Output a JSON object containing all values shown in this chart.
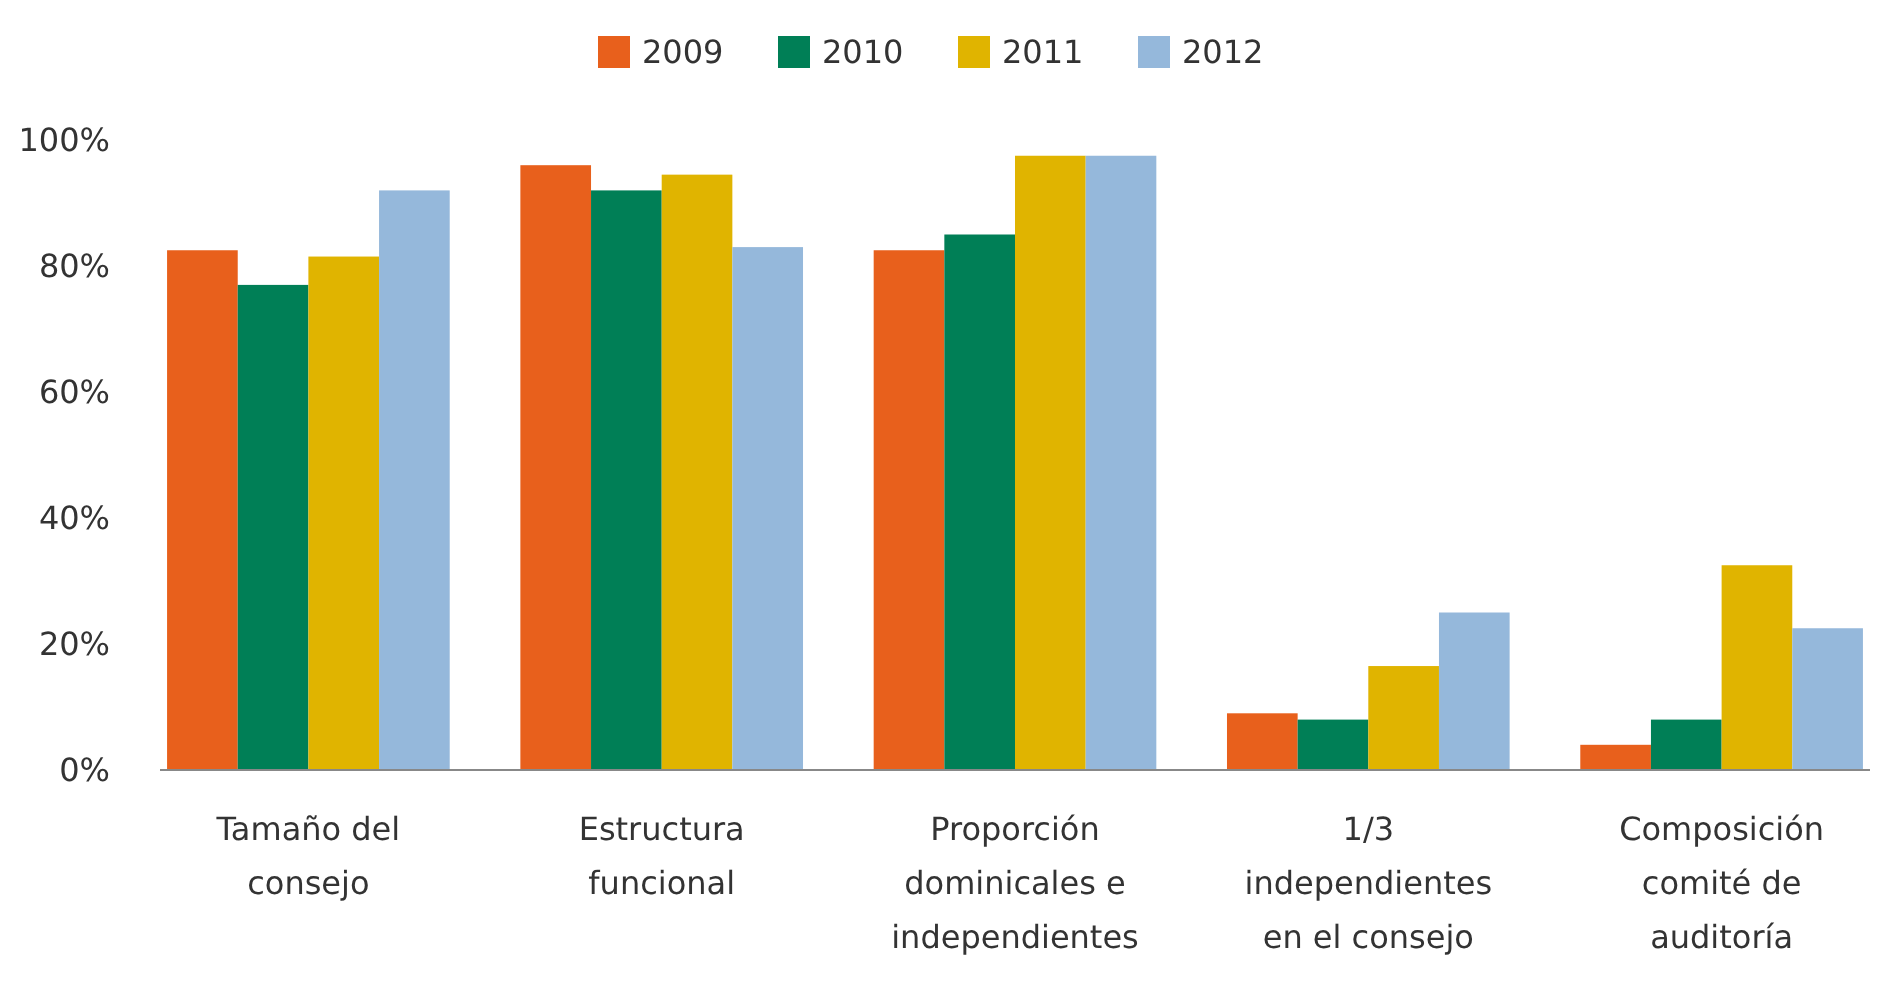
{
  "chart_data": {
    "type": "bar",
    "categories": [
      "Tamaño del consejo",
      "Estructura funcional",
      "Proporción dominicales e independientes",
      "1/3 independientes en el consejo",
      "Composición comité de auditoría"
    ],
    "series": [
      {
        "name": "2009",
        "color": "#e8601c",
        "values": [
          82.5,
          96,
          82.5,
          9,
          4
        ]
      },
      {
        "name": "2010",
        "color": "#007f56",
        "values": [
          77,
          92,
          85,
          8,
          8
        ]
      },
      {
        "name": "2011",
        "color": "#e0b400",
        "values": [
          81.5,
          94.5,
          97.5,
          16.5,
          32.5
        ]
      },
      {
        "name": "2012",
        "color": "#95b8db",
        "values": [
          92,
          83,
          97.5,
          25,
          22.5
        ]
      }
    ],
    "ylim": [
      0,
      100
    ],
    "yticks": [
      {
        "value": 0,
        "label": "0%"
      },
      {
        "value": 20,
        "label": "20%"
      },
      {
        "value": 40,
        "label": "40%"
      },
      {
        "value": 60,
        "label": "60%"
      },
      {
        "value": 80,
        "label": "80%"
      },
      {
        "value": 100,
        "label": "100%"
      }
    ],
    "grid": false,
    "legend": "top"
  }
}
